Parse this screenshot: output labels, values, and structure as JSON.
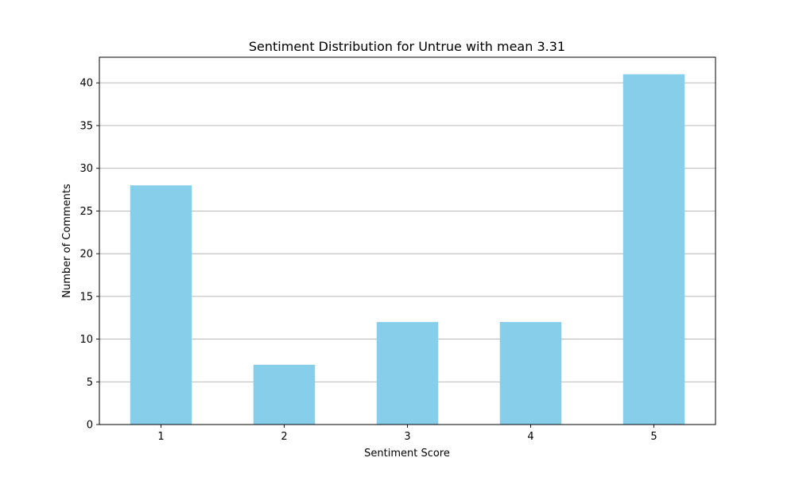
{
  "chart_data": {
    "type": "bar",
    "title": "Sentiment Distribution for Untrue with mean 3.31",
    "xlabel": "Sentiment Score",
    "ylabel": "Number of Comments",
    "categories": [
      "1",
      "2",
      "3",
      "4",
      "5"
    ],
    "values": [
      28,
      7,
      12,
      12,
      41
    ],
    "ylim": [
      0,
      43
    ],
    "yticks": [
      0,
      5,
      10,
      15,
      20,
      25,
      30,
      35,
      40
    ],
    "grid": "y-axis",
    "bar_color": "#87ceeb",
    "grid_color": "#b0b0b0"
  }
}
